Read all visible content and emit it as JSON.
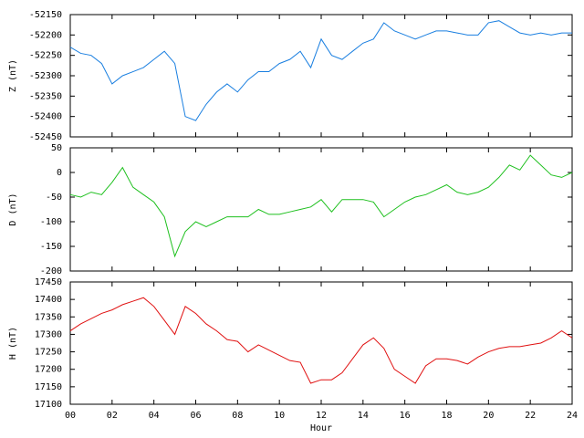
{
  "chart_data": [
    {
      "type": "line",
      "ylabel": "Z (nT)",
      "color": "#1a7fe0",
      "x": [
        0,
        0.5,
        1,
        1.5,
        2,
        2.5,
        3,
        3.5,
        4,
        4.5,
        5,
        5.5,
        6,
        6.5,
        7,
        7.5,
        8,
        8.5,
        9,
        9.5,
        10,
        10.5,
        11,
        11.5,
        12,
        12.5,
        13,
        13.5,
        14,
        14.5,
        15,
        15.5,
        16,
        16.5,
        17,
        17.5,
        18,
        18.5,
        19,
        19.5,
        20,
        20.5,
        21,
        21.5,
        22,
        22.5,
        23,
        23.5,
        24
      ],
      "values": [
        -52230,
        -52245,
        -52250,
        -52270,
        -52320,
        -52300,
        -52290,
        -52280,
        -52260,
        -52240,
        -52270,
        -52400,
        -52410,
        -52370,
        -52340,
        -52320,
        -52340,
        -52310,
        -52290,
        -52290,
        -52270,
        -52260,
        -52240,
        -52280,
        -52210,
        -52250,
        -52260,
        -52240,
        -52220,
        -52210,
        -52170,
        -52190,
        -52200,
        -52210,
        -52200,
        -52190,
        -52190,
        -52195,
        -52200,
        -52200,
        -52170,
        -52165,
        -52180,
        -52195,
        -52200,
        -52195,
        -52200,
        -52195,
        -52195
      ],
      "xlim": [
        0,
        24
      ],
      "xticks": [
        0,
        2,
        4,
        6,
        8,
        10,
        12,
        14,
        16,
        18,
        20,
        22,
        24
      ],
      "ylim": [
        -52450,
        -52150
      ],
      "yticks": [
        -52450,
        -52400,
        -52350,
        -52300,
        -52250,
        -52200,
        -52150
      ]
    },
    {
      "type": "line",
      "ylabel": "D (nT)",
      "color": "#1fc01f",
      "x": [
        0,
        0.5,
        1,
        1.5,
        2,
        2.5,
        3,
        3.5,
        4,
        4.5,
        5,
        5.5,
        6,
        6.5,
        7,
        7.5,
        8,
        8.5,
        9,
        9.5,
        10,
        10.5,
        11,
        11.5,
        12,
        12.5,
        13,
        13.5,
        14,
        14.5,
        15,
        15.5,
        16,
        16.5,
        17,
        17.5,
        18,
        18.5,
        19,
        19.5,
        20,
        20.5,
        21,
        21.5,
        22,
        22.5,
        23,
        23.5,
        24
      ],
      "values": [
        -45,
        -50,
        -40,
        -45,
        -20,
        10,
        -30,
        -45,
        -60,
        -90,
        -170,
        -120,
        -100,
        -110,
        -100,
        -90,
        -90,
        -90,
        -75,
        -85,
        -85,
        -80,
        -75,
        -70,
        -55,
        -80,
        -55,
        -55,
        -55,
        -60,
        -90,
        -75,
        -60,
        -50,
        -45,
        -35,
        -25,
        -40,
        -45,
        -40,
        -30,
        -10,
        15,
        5,
        35,
        15,
        -5,
        -10,
        0
      ],
      "xlim": [
        0,
        24
      ],
      "xticks": [
        0,
        2,
        4,
        6,
        8,
        10,
        12,
        14,
        16,
        18,
        20,
        22,
        24
      ],
      "ylim": [
        -200,
        50
      ],
      "yticks": [
        -200,
        -150,
        -100,
        -50,
        0,
        50
      ]
    },
    {
      "type": "line",
      "ylabel": "H (nT)",
      "xlabel": "Hour",
      "color": "#e01010",
      "x": [
        0,
        0.5,
        1,
        1.5,
        2,
        2.5,
        3,
        3.5,
        4,
        4.5,
        5,
        5.5,
        6,
        6.5,
        7,
        7.5,
        8,
        8.5,
        9,
        9.5,
        10,
        10.5,
        11,
        11.5,
        12,
        12.5,
        13,
        13.5,
        14,
        14.5,
        15,
        15.5,
        16,
        16.5,
        17,
        17.5,
        18,
        18.5,
        19,
        19.5,
        20,
        20.5,
        21,
        21.5,
        22,
        22.5,
        23,
        23.5,
        24
      ],
      "values": [
        17310,
        17330,
        17345,
        17360,
        17370,
        17385,
        17395,
        17405,
        17380,
        17340,
        17300,
        17380,
        17360,
        17330,
        17310,
        17285,
        17280,
        17250,
        17270,
        17255,
        17240,
        17225,
        17220,
        17160,
        17170,
        17170,
        17190,
        17230,
        17270,
        17290,
        17260,
        17200,
        17180,
        17160,
        17210,
        17230,
        17230,
        17225,
        17215,
        17235,
        17250,
        17260,
        17265,
        17265,
        17270,
        17275,
        17290,
        17310,
        17290
      ],
      "xlim": [
        0,
        24
      ],
      "xticks": [
        {
          "value": 0,
          "label": "00"
        },
        {
          "value": 2,
          "label": "02"
        },
        {
          "value": 4,
          "label": "04"
        },
        {
          "value": 6,
          "label": "06"
        },
        {
          "value": 8,
          "label": "08"
        },
        {
          "value": 10,
          "label": "10"
        },
        {
          "value": 12,
          "label": "12"
        },
        {
          "value": 14,
          "label": "14"
        },
        {
          "value": 16,
          "label": "16"
        },
        {
          "value": 18,
          "label": "18"
        },
        {
          "value": 20,
          "label": "20"
        },
        {
          "value": 22,
          "label": "22"
        },
        {
          "value": 24,
          "label": "24"
        }
      ],
      "ylim": [
        17100,
        17450
      ],
      "yticks": [
        17100,
        17150,
        17200,
        17250,
        17300,
        17350,
        17400,
        17450
      ]
    }
  ]
}
